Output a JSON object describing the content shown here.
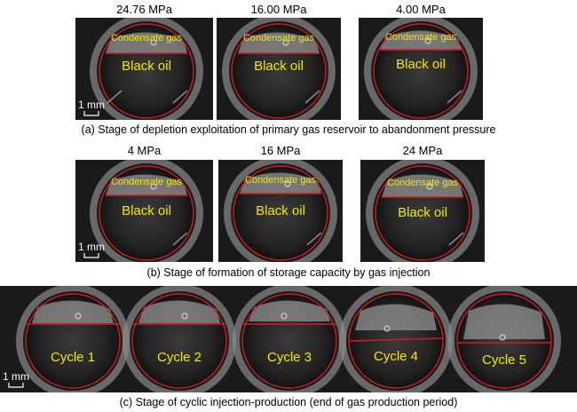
{
  "row_a": {
    "pressures": [
      "24.76 MPa",
      "16.00 MPa",
      "4.00 MPa"
    ],
    "gas_label": "Condensate gas",
    "oil_label": "Black oil",
    "scale_label": "1 mm",
    "caption": "(a) Stage of depletion exploitation of primary gas reservoir to abandonment pressure"
  },
  "row_b": {
    "pressures": [
      "4 MPa",
      "16 MPa",
      "24 MPa"
    ],
    "gas_label": "Condensate gas",
    "oil_label": "Black oil",
    "scale_label": "1 mm",
    "caption": "(b) Stage of formation of storage capacity by gas injection"
  },
  "row_c": {
    "cycles": [
      "Cycle 1",
      "Cycle 2",
      "Cycle 3",
      "Cycle 4",
      "Cycle 5"
    ],
    "scale_label": "1 mm",
    "caption": "(c) Stage of cyclic injection-production (end of gas production period)"
  },
  "colors": {
    "interface_line": "#d21e1e",
    "label_text": "#f3e600",
    "panel_bg": "#1c1c1c"
  }
}
